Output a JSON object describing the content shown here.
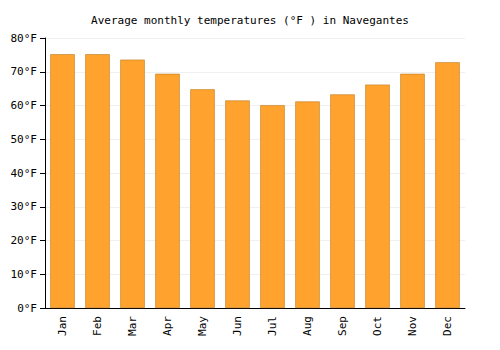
{
  "chart_data": {
    "type": "bar",
    "title": "Average monthly temperatures (°F ) in Navegantes",
    "categories": [
      "Jan",
      "Feb",
      "Mar",
      "Apr",
      "May",
      "Jun",
      "Jul",
      "Aug",
      "Sep",
      "Oct",
      "Nov",
      "Dec"
    ],
    "values": [
      75.2,
      75.2,
      73.6,
      69.4,
      64.8,
      61.5,
      60.1,
      61.2,
      63.3,
      66.2,
      69.4,
      72.8
    ],
    "color": "#ffa32e",
    "ylim": [
      0,
      80
    ],
    "yticks": [
      {
        "value": 0,
        "label": "0°F"
      },
      {
        "value": 10,
        "label": "10°F"
      },
      {
        "value": 20,
        "label": "20°F"
      },
      {
        "value": 30,
        "label": "30°F"
      },
      {
        "value": 40,
        "label": "40°F"
      },
      {
        "value": 50,
        "label": "50°F"
      },
      {
        "value": 60,
        "label": "60°F"
      },
      {
        "value": 70,
        "label": "70°F"
      },
      {
        "value": 80,
        "label": "80°F"
      }
    ],
    "grid": true
  }
}
